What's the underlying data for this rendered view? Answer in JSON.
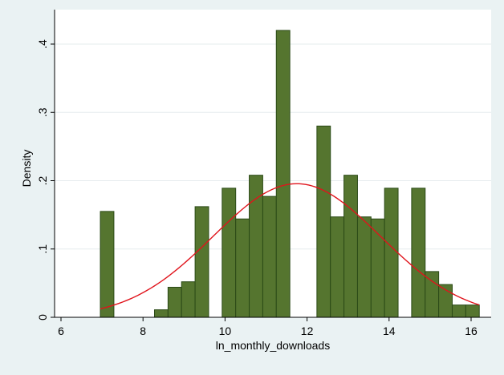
{
  "chart_data": {
    "type": "bar",
    "subtype": "histogram with normal density overlay",
    "xlabel": "ln_monthly_downloads",
    "ylabel": "Density",
    "xlim": [
      6,
      16.2
    ],
    "ylim": [
      0,
      0.44
    ],
    "xticks": [
      6,
      8,
      10,
      12,
      14,
      16
    ],
    "xtick_labels": [
      "6",
      "8",
      "10",
      "12",
      "14",
      "16"
    ],
    "yticks": [
      0,
      0.1,
      0.2,
      0.3,
      0.4
    ],
    "ytick_labels": [
      "0",
      ".1",
      ".2",
      ".3",
      ".4"
    ],
    "grid": "horizontal",
    "bar_color": "#55752f",
    "bar_edge_color": "#2b4a17",
    "curve_color": "#e0141c",
    "plot_background": "#ffffff",
    "outer_background": "#eaf2f3",
    "bar_width": 0.33,
    "bins": [
      {
        "x0": 6.96,
        "density": 0.155
      },
      {
        "x0": 8.28,
        "density": 0.011
      },
      {
        "x0": 8.61,
        "density": 0.044
      },
      {
        "x0": 8.94,
        "density": 0.052
      },
      {
        "x0": 9.27,
        "density": 0.162
      },
      {
        "x0": 9.93,
        "density": 0.189
      },
      {
        "x0": 10.26,
        "density": 0.144
      },
      {
        "x0": 10.59,
        "density": 0.208
      },
      {
        "x0": 10.92,
        "density": 0.177
      },
      {
        "x0": 11.25,
        "density": 0.42
      },
      {
        "x0": 12.24,
        "density": 0.28
      },
      {
        "x0": 12.57,
        "density": 0.147
      },
      {
        "x0": 12.9,
        "density": 0.208
      },
      {
        "x0": 13.23,
        "density": 0.147
      },
      {
        "x0": 13.56,
        "density": 0.144
      },
      {
        "x0": 13.89,
        "density": 0.189
      },
      {
        "x0": 14.55,
        "density": 0.189
      },
      {
        "x0": 14.88,
        "density": 0.067
      },
      {
        "x0": 15.21,
        "density": 0.048
      },
      {
        "x0": 15.54,
        "density": 0.018
      },
      {
        "x0": 15.87,
        "density": 0.018
      }
    ],
    "normal_curve": {
      "mean": 11.75,
      "sd": 2.04,
      "x_range": [
        6.96,
        16.2
      ]
    }
  }
}
